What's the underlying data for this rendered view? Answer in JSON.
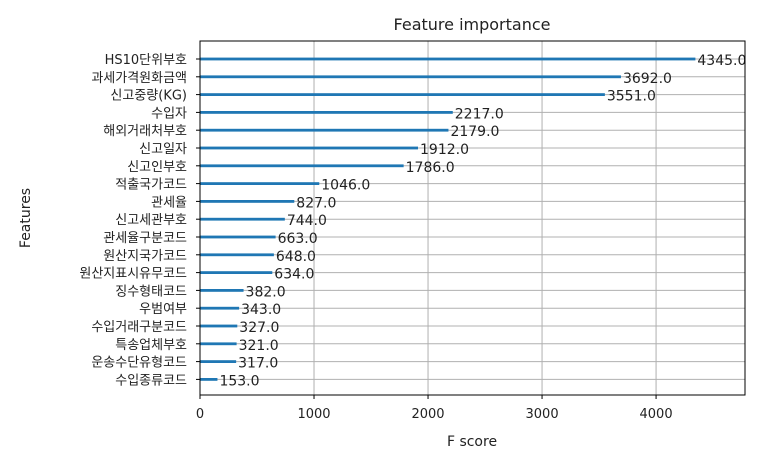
{
  "chart_data": {
    "type": "bar",
    "orientation": "horizontal",
    "title": "Feature importance",
    "xlabel": "F score",
    "ylabel": "Features",
    "xlim": [
      0,
      4780
    ],
    "xticks": [
      0,
      1000,
      2000,
      3000,
      4000
    ],
    "grid": true,
    "bar_color": "#1f77b4",
    "categories": [
      "HS10단위부호",
      "과세가격원화금액",
      "신고중량(KG)",
      "수입자",
      "해외거래처부호",
      "신고일자",
      "신고인부호",
      "적출국가코드",
      "관세율",
      "신고세관부호",
      "관세율구분코드",
      "원산지국가코드",
      "원산지표시유무코드",
      "징수형태코드",
      "우범여부",
      "수입거래구분코드",
      "특송업체부호",
      "운송수단유형코드",
      "수입종류코드"
    ],
    "values": [
      4345.0,
      3692.0,
      3551.0,
      2217.0,
      2179.0,
      1912.0,
      1786.0,
      1046.0,
      827.0,
      744.0,
      663.0,
      648.0,
      634.0,
      382.0,
      343.0,
      327.0,
      321.0,
      317.0,
      153.0
    ],
    "value_labels": [
      "4345.0",
      "3692.0",
      "3551.0",
      "2217.0",
      "2179.0",
      "1912.0",
      "1786.0",
      "1046.0",
      "827.0",
      "744.0",
      "663.0",
      "648.0",
      "634.0",
      "382.0",
      "343.0",
      "327.0",
      "321.0",
      "317.0",
      "153.0"
    ]
  }
}
